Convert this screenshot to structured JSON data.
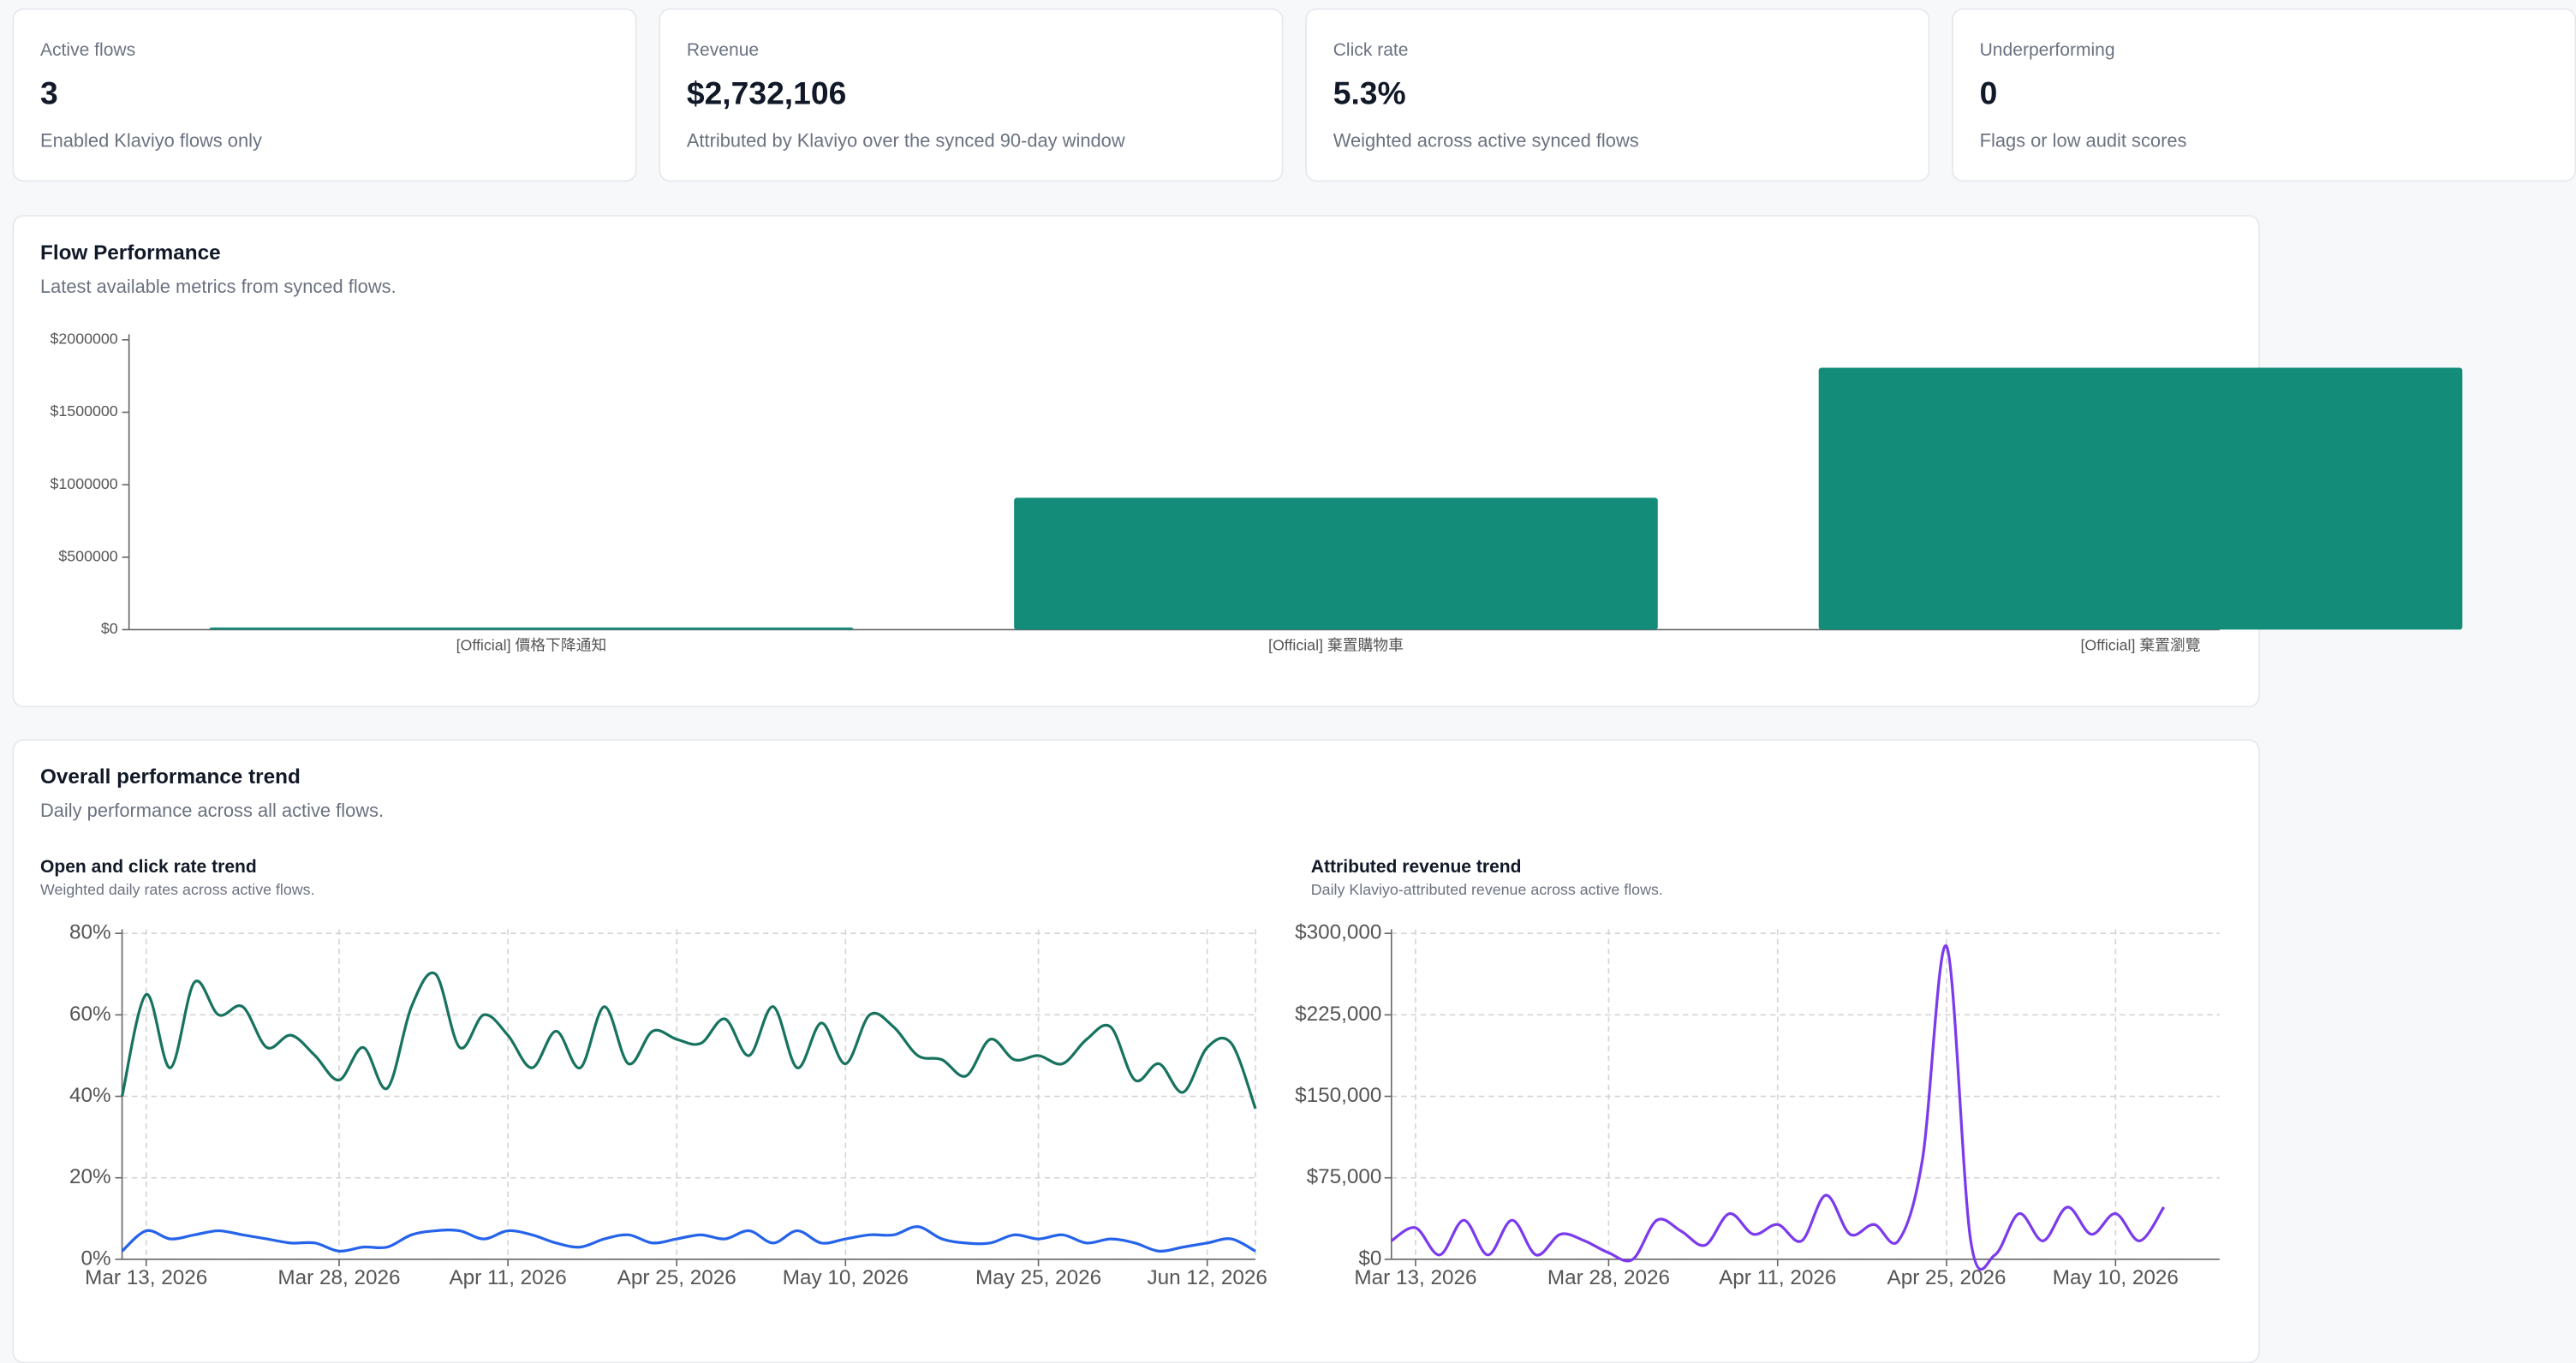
{
  "cards": [
    {
      "label": "Active flows",
      "value": "3",
      "note": "Enabled Klaviyo flows only"
    },
    {
      "label": "Revenue",
      "value": "$2,732,106",
      "note": "Attributed by Klaviyo over the synced 90-day window"
    },
    {
      "label": "Click rate",
      "value": "5.3%",
      "note": "Weighted across active synced flows"
    },
    {
      "label": "Underperforming",
      "value": "0",
      "note": "Flags or low audit scores"
    }
  ],
  "flow_panel": {
    "title": "Flow Performance",
    "subtitle": "Latest available metrics from synced flows."
  },
  "trend_panel": {
    "title": "Overall performance trend",
    "subtitle": "Daily performance across all active flows."
  },
  "chart_data": [
    {
      "type": "bar",
      "categories": [
        "[Official] 價格下降通知",
        "[Official] 棄置購物車",
        "[Official] 棄置瀏覽"
      ],
      "values": [
        15106,
        910000,
        1807000
      ],
      "color": "#138d7a",
      "ylim": [
        0,
        2000000
      ],
      "yticks": [
        {
          "value": 0,
          "label": "$0"
        },
        {
          "value": 500000,
          "label": "$500000"
        },
        {
          "value": 1000000,
          "label": "$1000000"
        },
        {
          "value": 1500000,
          "label": "$1500000"
        },
        {
          "value": 2000000,
          "label": "$2000000"
        }
      ]
    },
    {
      "type": "line",
      "title": "Open and click rate trend",
      "subtitle": "Weighted daily rates across active flows.",
      "categories": [
        null,
        "Mar 13, 2026",
        null,
        null,
        null,
        null,
        null,
        null,
        null,
        "Mar 28, 2026",
        null,
        null,
        null,
        null,
        null,
        null,
        "Apr 11, 2026",
        null,
        null,
        null,
        null,
        null,
        null,
        "Apr 25, 2026",
        null,
        null,
        null,
        null,
        null,
        null,
        "May 10, 2026",
        null,
        null,
        null,
        null,
        null,
        null,
        null,
        "May 25, 2026",
        null,
        null,
        null,
        null,
        null,
        null,
        "Jun 12, 2026",
        null,
        null
      ],
      "series": [
        {
          "color": "#17735f",
          "values": [
            40,
            65,
            47,
            68,
            60,
            62,
            52,
            55,
            50,
            44,
            52,
            42,
            62,
            70,
            52,
            60,
            55,
            47,
            56,
            47,
            62,
            48,
            56,
            54,
            53,
            59,
            50,
            62,
            47,
            58,
            48,
            60,
            57,
            50,
            49,
            45,
            54,
            49,
            50,
            48,
            54,
            57,
            44,
            48,
            41,
            52,
            53,
            37
          ]
        },
        {
          "color": "#2563eb",
          "values": [
            2,
            7,
            5,
            6,
            7,
            6,
            5,
            4,
            4,
            2,
            3,
            3,
            6,
            7,
            7,
            5,
            7,
            6,
            4,
            3,
            5,
            6,
            4,
            5,
            6,
            5,
            7,
            4,
            7,
            4,
            5,
            6,
            6,
            8,
            5,
            4,
            4,
            6,
            5,
            6,
            4,
            5,
            4,
            2,
            3,
            4,
            5,
            2
          ]
        }
      ],
      "ylim": [
        0,
        80
      ],
      "yticks": [
        {
          "value": 0,
          "label": "0%"
        },
        {
          "value": 20,
          "label": "20%"
        },
        {
          "value": 40,
          "label": "40%"
        },
        {
          "value": 60,
          "label": "60%"
        },
        {
          "value": 80,
          "label": "80%"
        }
      ],
      "grid": true
    },
    {
      "type": "line",
      "title": "Attributed revenue trend",
      "subtitle": "Daily Klaviyo-attributed revenue across active flows.",
      "categories": [
        null,
        "Mar 13, 2026",
        null,
        null,
        null,
        null,
        null,
        null,
        null,
        "Mar 28, 2026",
        null,
        null,
        null,
        null,
        null,
        null,
        "Apr 11, 2026",
        null,
        null,
        null,
        null,
        null,
        null,
        "Apr 25, 2026",
        null,
        null,
        null,
        null,
        null,
        null,
        "May 10, 2026",
        null,
        null
      ],
      "series": [
        {
          "color": "#7c3aed",
          "values": [
            17000,
            29000,
            4000,
            36000,
            4000,
            36000,
            4000,
            23000,
            17000,
            6000,
            0,
            36000,
            26000,
            13000,
            42000,
            23000,
            32000,
            17000,
            59000,
            23000,
            32000,
            17000,
            92000,
            288000,
            17000,
            4000,
            42000,
            17000,
            48000,
            23000,
            42000,
            17000,
            48000
          ]
        }
      ],
      "ylim": [
        0,
        300000
      ],
      "yticks": [
        {
          "value": 0,
          "label": "$0"
        },
        {
          "value": 75000,
          "label": "$75,000"
        },
        {
          "value": 150000,
          "label": "$150,000"
        },
        {
          "value": 225000,
          "label": "$225,000"
        },
        {
          "value": 300000,
          "label": "$300,000"
        }
      ],
      "grid": true
    }
  ]
}
